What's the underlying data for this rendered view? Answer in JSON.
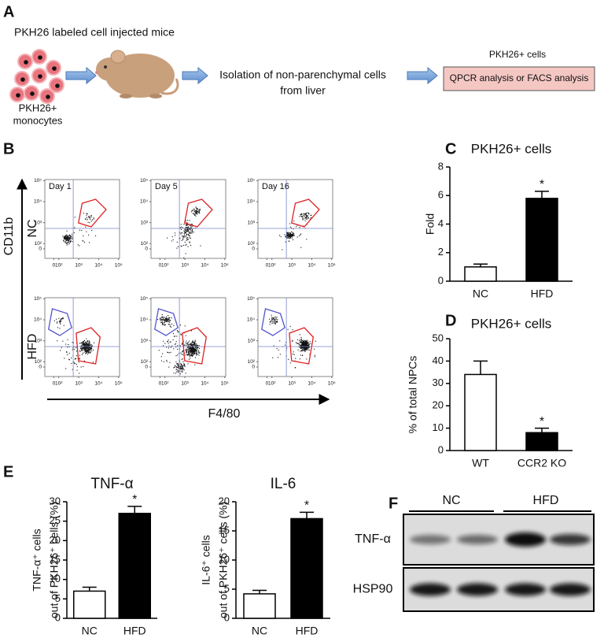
{
  "panel_labels": [
    "A",
    "B",
    "C",
    "D",
    "E",
    "F"
  ],
  "diagram": {
    "title": "PKH26 labeled cell injected mice",
    "cells_label": [
      "PKH26+",
      "monocytes"
    ],
    "isolation_label": [
      "Isolation of non-parenchymal cells",
      "from liver"
    ],
    "result_title": "PKH26+ cells",
    "result_box": "QPCR analysis or FACS analysis"
  },
  "flow_cytometry": {
    "y_axis_label": "CD11b",
    "x_axis_label": "F4/80",
    "row_labels": [
      "NC",
      "HFD"
    ],
    "column_labels": [
      "Day 1",
      "Day 5",
      "Day 16"
    ],
    "scale": "log",
    "ticks": [
      0,
      {
        "value": 100,
        "label": "10²"
      },
      {
        "value": 1000,
        "label": "10³"
      },
      {
        "value": 10000,
        "label": "10⁴"
      },
      {
        "value": 100000,
        "label": "10⁵"
      }
    ]
  },
  "chart_data": [
    {
      "type": "bar",
      "title": "PKH26+ cells",
      "ylabel": "Fold",
      "categories": [
        "NC",
        "HFD"
      ],
      "values": [
        1,
        5.8
      ],
      "errors": [
        0.2,
        0.5
      ],
      "significance": [
        null,
        "*"
      ],
      "bar_colors": [
        "#ffffff",
        "#000000"
      ],
      "edge_color": "#000000",
      "ylim": [
        0,
        8
      ],
      "yticks": [
        0,
        2,
        4,
        6,
        8
      ]
    },
    {
      "type": "bar",
      "title": "PKH26+ cells",
      "ylabel": "% of total NPCs",
      "categories": [
        "WT",
        "CCR2 KO"
      ],
      "values": [
        34,
        8
      ],
      "errors": [
        6,
        2
      ],
      "significance": [
        null,
        "*"
      ],
      "bar_colors": [
        "#ffffff",
        "#000000"
      ],
      "edge_color": "#000000",
      "ylim": [
        0,
        50
      ],
      "yticks": [
        0,
        10,
        20,
        30,
        40,
        50
      ]
    },
    {
      "type": "bar",
      "title": "TNF-α",
      "ylabel": [
        "TNF-α⁺ cells",
        "out of PKH26⁺ cells (%)"
      ],
      "categories": [
        "NC",
        "HFD"
      ],
      "values": [
        7,
        27
      ],
      "errors": [
        1,
        1.8
      ],
      "significance": [
        null,
        "*"
      ],
      "bar_colors": [
        "#ffffff",
        "#000000"
      ],
      "edge_color": "#000000",
      "ylim": [
        0,
        30
      ],
      "yticks": [
        0,
        5,
        10,
        15,
        20,
        25,
        30
      ]
    },
    {
      "type": "bar",
      "title": "IL-6",
      "ylabel": [
        "IL-6⁺ cells",
        "out of PKH26⁺ cells (%)"
      ],
      "categories": [
        "NC",
        "HFD"
      ],
      "values": [
        4.2,
        17.1
      ],
      "errors": [
        0.6,
        1.1
      ],
      "significance": [
        null,
        "*"
      ],
      "bar_colors": [
        "#ffffff",
        "#000000"
      ],
      "edge_color": "#000000",
      "ylim": [
        0,
        20
      ],
      "yticks": [
        0,
        5,
        10,
        15,
        20
      ]
    }
  ],
  "western_blot": {
    "group_labels": [
      "NC",
      "HFD"
    ],
    "row_labels": [
      "TNF-α",
      "HSP90"
    ]
  }
}
